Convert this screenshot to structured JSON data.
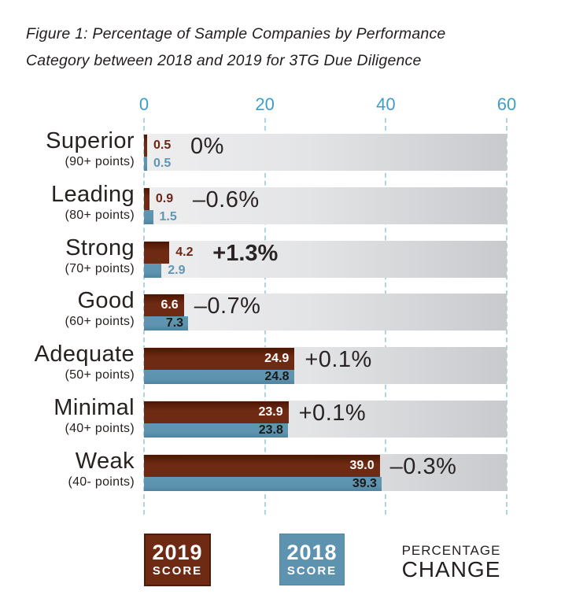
{
  "title": "Figure 1:  Percentage of Sample Companies by Performance Category between 2018 and 2019 for 3TG Due Diligence",
  "colors": {
    "score_2019": "#6e2a12",
    "score_2018": "#5d93af",
    "axis_blue": "#3e9ec7",
    "gridline": "#aed3e2",
    "band_light": "#eeeeef",
    "band_dark": "#c8cacd",
    "text_dark": "#241f20"
  },
  "chart_data": {
    "type": "bar",
    "orientation": "horizontal",
    "categories": [
      "Superior",
      "Leading",
      "Strong",
      "Good",
      "Adequate",
      "Minimal",
      "Weak"
    ],
    "category_sublabels": [
      "(90+ points)",
      "(80+ points)",
      "(70+ points)",
      "(60+ points)",
      "(50+ points)",
      "(40+ points)",
      "(40- points)"
    ],
    "series": [
      {
        "name": "2019 SCORE",
        "color": "#6e2a12",
        "values": [
          0.5,
          0.9,
          4.2,
          6.6,
          24.9,
          23.9,
          39.0
        ]
      },
      {
        "name": "2018 SCORE",
        "color": "#5d93af",
        "values": [
          0.5,
          1.5,
          2.9,
          7.3,
          24.8,
          23.8,
          39.3
        ]
      }
    ],
    "percentage_change": [
      "0%",
      "–0.6%",
      "+1.3%",
      "–0.7%",
      "+0.1%",
      "+0.1%",
      "–0.3%"
    ],
    "emphasized_change_index": 2,
    "x_axis": {
      "ticks": [
        0,
        20,
        40,
        60
      ],
      "min": 0,
      "max": 60
    },
    "grid": "dashed-vertical",
    "legend_position": "bottom",
    "legend": [
      {
        "line1": "2019",
        "line2": "SCORE"
      },
      {
        "line1": "2018",
        "line2": "SCORE"
      },
      {
        "line1": "PERCENTAGE",
        "line2": "CHANGE"
      }
    ]
  }
}
